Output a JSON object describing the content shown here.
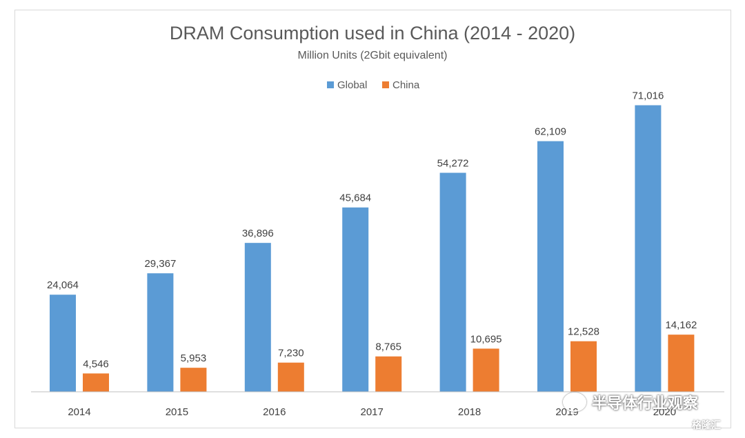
{
  "chart_data": {
    "type": "bar",
    "title": "DRAM Consumption used in China (2014 - 2020)",
    "subtitle": "Million Units (2Gbit equivalent)",
    "categories": [
      "2014",
      "2015",
      "2016",
      "2017",
      "2018",
      "2019",
      "2020"
    ],
    "series": [
      {
        "name": "Global",
        "values": [
          24064,
          29367,
          36896,
          45684,
          54272,
          62109,
          71016
        ],
        "labels": [
          "24,064",
          "29,367",
          "36,896",
          "45,684",
          "54,272",
          "62,109",
          "71,016"
        ]
      },
      {
        "name": "China",
        "values": [
          4546,
          5953,
          7230,
          8765,
          10695,
          12528,
          14162
        ],
        "labels": [
          "4,546",
          "5,953",
          "7,230",
          "8,765",
          "10,695",
          "12,528",
          "14,162"
        ]
      }
    ],
    "xlabel": "",
    "ylabel": "",
    "ylim": [
      0,
      80000
    ],
    "grid": false,
    "legend": "top-center",
    "colors": {
      "Global": "#5b9bd5",
      "China": "#ed7d31"
    }
  },
  "watermark": {
    "text": "半导体行业观察",
    "corner": "格隆汇"
  }
}
